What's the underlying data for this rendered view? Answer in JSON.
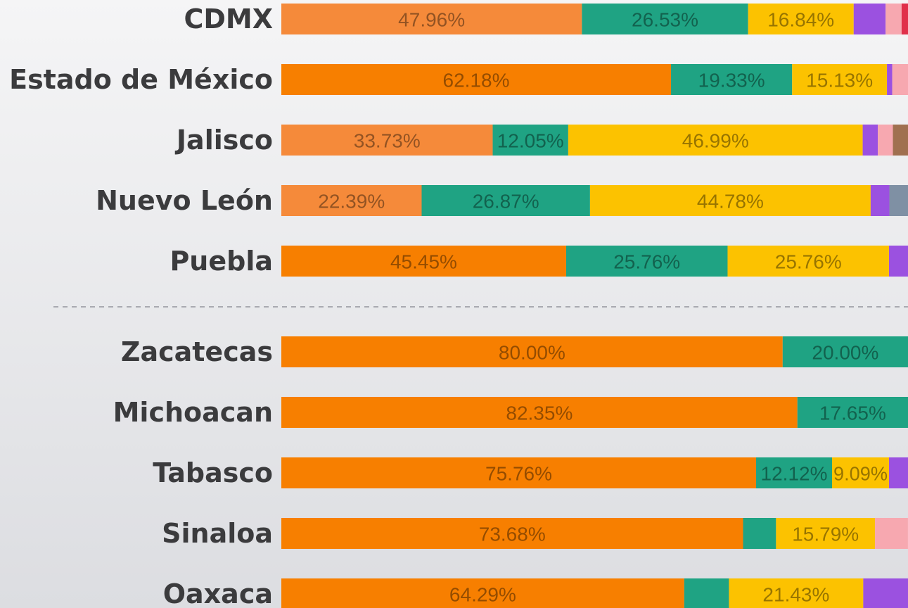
{
  "chart_data": {
    "type": "stacked-bar",
    "orientation": "horizontal",
    "xlim": [
      0,
      100
    ],
    "categories": [
      "CDMX",
      "Estado de México",
      "Jalisco",
      "Nuevo León",
      "Puebla",
      "Zacatecas",
      "Michoacan",
      "Tabasco",
      "Sinaloa",
      "Oaxaca"
    ],
    "series": [
      {
        "color": "#f77f00",
        "colors": [
          "#f58a3a",
          "#f77f00",
          "#f58a3a",
          "#f58a3a",
          "#f77f00",
          "#f77f00",
          "#f77f00",
          "#f77f00",
          "#f77f00",
          "#f77f00"
        ],
        "values": [
          47.96,
          62.18,
          33.73,
          22.39,
          45.45,
          80.0,
          82.35,
          75.76,
          73.68,
          64.29
        ],
        "value_labels": [
          "47.96%",
          "62.18%",
          "33.73%",
          "22.39%",
          "45.45%",
          "80.00%",
          "82.35%",
          "75.76%",
          "73.68%",
          "64.29%"
        ]
      },
      {
        "color": "#1fa383",
        "values": [
          26.53,
          19.33,
          12.05,
          26.87,
          25.76,
          20.0,
          17.65,
          12.12,
          5.26,
          7.14
        ],
        "value_labels": [
          "26.53%",
          "19.33%",
          "12.05%",
          "26.87%",
          "25.76%",
          "20.00%",
          "17.65%",
          "12.12%",
          null,
          null
        ]
      },
      {
        "color": "#fcc200",
        "values": [
          16.84,
          15.13,
          46.99,
          44.78,
          25.76,
          0,
          0,
          9.09,
          15.79,
          21.43
        ],
        "value_labels": [
          "16.84%",
          "15.13%",
          "46.99%",
          "44.78%",
          "25.76%",
          null,
          null,
          "9.09%",
          "15.79%",
          "21.43%"
        ]
      },
      {
        "color": "#9b51e0",
        "values": [
          5.1,
          0.84,
          2.41,
          2.99,
          3.03,
          0,
          0,
          3.03,
          0,
          7.14
        ]
      },
      {
        "color": "#f7a8b0",
        "values": [
          2.55,
          2.52,
          2.41,
          0,
          0,
          0,
          0,
          0,
          5.26,
          0
        ]
      },
      {
        "color": "#a07050",
        "values": [
          0,
          0,
          2.41,
          0,
          0,
          0,
          0,
          0,
          0,
          0
        ]
      },
      {
        "color": "#e0304a",
        "values": [
          1.02,
          0,
          0,
          0,
          0,
          0,
          0,
          0,
          0,
          0
        ]
      },
      {
        "color": "#7f90a4",
        "values": [
          0,
          0,
          0,
          2.99,
          0,
          0,
          0,
          0,
          0,
          0
        ]
      }
    ]
  }
}
